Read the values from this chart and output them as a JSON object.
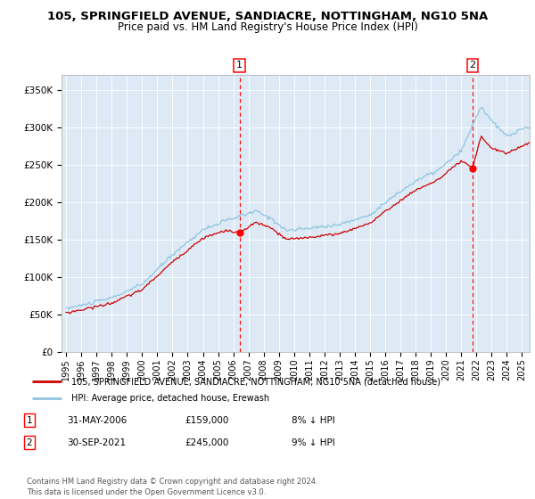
{
  "title_line1": "105, SPRINGFIELD AVENUE, SANDIACRE, NOTTINGHAM, NG10 5NA",
  "title_line2": "Price paid vs. HM Land Registry's House Price Index (HPI)",
  "ylabel_ticks": [
    "£0",
    "£50K",
    "£100K",
    "£150K",
    "£200K",
    "£250K",
    "£300K",
    "£350K"
  ],
  "ytick_values": [
    0,
    50000,
    100000,
    150000,
    200000,
    250000,
    300000,
    350000
  ],
  "ylim": [
    0,
    370000
  ],
  "xlim_start": 1994.7,
  "xlim_end": 2025.5,
  "hpi_color": "#90c4e0",
  "price_color": "#cc0000",
  "bg_color": "#ddeaf5",
  "marker1_x": 2006.42,
  "marker1_y": 159000,
  "marker2_x": 2021.75,
  "marker2_y": 245000,
  "legend_line1": "105, SPRINGFIELD AVENUE, SANDIACRE, NOTTINGHAM, NG10 5NA (detached house)",
  "legend_line2": "HPI: Average price, detached house, Erewash",
  "table_row1": [
    "1",
    "31-MAY-2006",
    "£159,000",
    "8% ↓ HPI"
  ],
  "table_row2": [
    "2",
    "30-SEP-2021",
    "£245,000",
    "9% ↓ HPI"
  ],
  "footnote": "Contains HM Land Registry data © Crown copyright and database right 2024.\nThis data is licensed under the Open Government Licence v3.0.",
  "xticks": [
    1995,
    1996,
    1997,
    1998,
    1999,
    2000,
    2001,
    2002,
    2003,
    2004,
    2005,
    2006,
    2007,
    2008,
    2009,
    2010,
    2011,
    2012,
    2013,
    2014,
    2015,
    2016,
    2017,
    2018,
    2019,
    2020,
    2021,
    2022,
    2023,
    2024,
    2025
  ]
}
